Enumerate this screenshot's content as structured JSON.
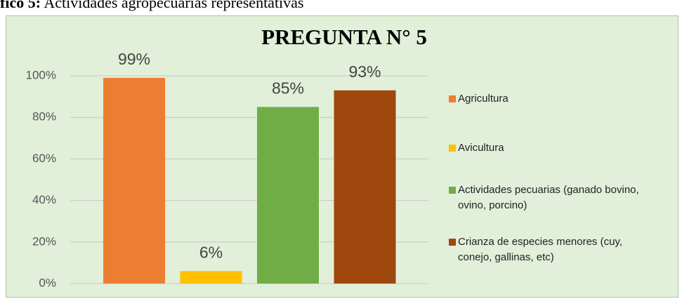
{
  "caption": {
    "label": "fico 5:",
    "text": "Actividades agropecuarias representativas"
  },
  "chart_data": {
    "type": "bar",
    "title": "PREGUNTA N° 5",
    "categories": [
      "Agricultura",
      "Avicultura",
      "Actividades pecuarias (ganado bovino, ovino, porcino)",
      "Crianza de especies menores (cuy, conejo, gallinas, etc)"
    ],
    "values": [
      99,
      6,
      85,
      93
    ],
    "value_labels": [
      "99%",
      "6%",
      "85%",
      "93%"
    ],
    "colors": [
      "#ed7d31",
      "#ffc000",
      "#70ad47",
      "#9e480e"
    ],
    "ylim": [
      0,
      100
    ],
    "yticks": [
      {
        "value": 0,
        "label": "0%"
      },
      {
        "value": 20,
        "label": "20%"
      },
      {
        "value": 40,
        "label": "40%"
      },
      {
        "value": 60,
        "label": "60%"
      },
      {
        "value": 80,
        "label": "80%"
      },
      {
        "value": 100,
        "label": "100%"
      }
    ],
    "grid": true,
    "legend": "right"
  }
}
